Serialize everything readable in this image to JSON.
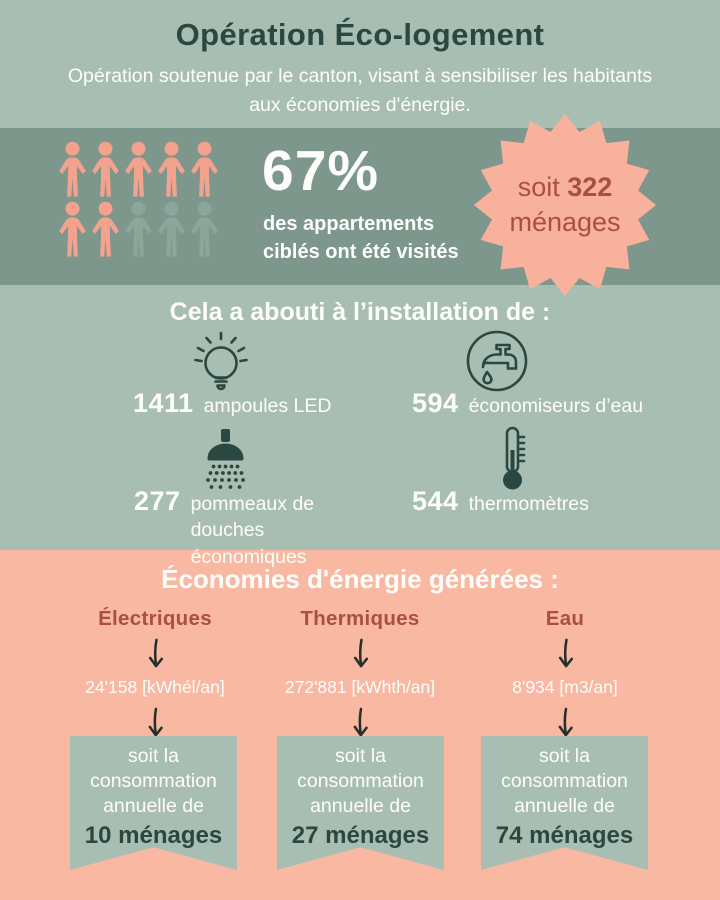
{
  "header": {
    "title": "Opération Éco-logement",
    "subtitle": "Opération soutenue par le canton, visant à sensibiliser les habitants aux économies d'énergie."
  },
  "stats_band": {
    "percent": "67%",
    "caption": "des appartements ciblés ont été visités",
    "badge": {
      "prefix": "soit",
      "number": "322",
      "suffix": "ménages"
    },
    "people": {
      "total": 10,
      "highlighted": 7,
      "rows": 2,
      "per_row": 5
    }
  },
  "installation": {
    "heading": "Cela a abouti à l’installation de :",
    "items": [
      {
        "icon": "lightbulb-icon",
        "value": "1411",
        "label": "ampoules LED"
      },
      {
        "icon": "water-tap-icon",
        "value": "594",
        "label": "économiseurs d’eau"
      },
      {
        "icon": "shower-head-icon",
        "value": "277",
        "label": "pommeaux de douches économiques"
      },
      {
        "icon": "thermometer-icon",
        "value": "544",
        "label": "thermomètres"
      }
    ]
  },
  "savings": {
    "heading": "Économies d'énergie générées :",
    "columns": [
      {
        "label": "Électriques",
        "value": "24'158 [kWhél/an]",
        "ribbon_text": "soit la consommation annuelle de",
        "ribbon_value": "10 ménages"
      },
      {
        "label": "Thermiques",
        "value": "272'881 [kWhth/an]",
        "ribbon_text": "soit la consommation annuelle de",
        "ribbon_value": "27 ménages"
      },
      {
        "label": "Eau",
        "value": "8'934 [m3/an]",
        "ribbon_text": "soit la consommation annuelle de",
        "ribbon_value": "74 ménages"
      }
    ]
  },
  "colors": {
    "sage_light": "#a9beb2",
    "sage_dark": "#7e978d",
    "salmon_bg": "#f9b8a2",
    "salmon_badge": "#f8b19c",
    "person_salmon": "#f4a28e",
    "person_sage": "#8ba69b",
    "dark_teal": "#2b4741",
    "maroon": "#aa4f43",
    "arrow_dark": "#272f2b",
    "white": "#fdfdfc"
  },
  "chart_data": [
    {
      "type": "pie",
      "title": "des appartements ciblés ont été visités",
      "categories": [
        "visités",
        "non visités"
      ],
      "values": [
        67,
        33
      ],
      "unit": "%",
      "annotation": "soit 322 ménages",
      "render": "pictograph 10 person icons, 7 highlighted"
    },
    {
      "type": "bar",
      "title": "Cela a abouti à l’installation de",
      "categories": [
        "ampoules LED",
        "économiseurs d’eau",
        "pommeaux de douches économiques",
        "thermomètres"
      ],
      "values": [
        1411,
        594,
        277,
        544
      ]
    },
    {
      "type": "bar",
      "title": "Économies d'énergie générées",
      "categories": [
        "Électriques",
        "Thermiques",
        "Eau"
      ],
      "values": [
        24158,
        272881,
        8934
      ],
      "units": [
        "kWhél/an",
        "kWhth/an",
        "m3/an"
      ],
      "household_equivalents": [
        10,
        27,
        74
      ]
    }
  ]
}
